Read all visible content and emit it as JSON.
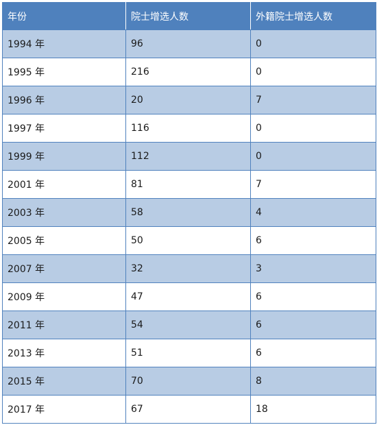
{
  "table": {
    "headers": [
      "年份",
      "院士增选人数",
      "外籍院士增选人数"
    ],
    "rows": [
      [
        "1994 年",
        "96",
        "0"
      ],
      [
        "1995 年",
        "216",
        "0"
      ],
      [
        "1996 年",
        "20",
        "7"
      ],
      [
        "1997 年",
        "116",
        "0"
      ],
      [
        "1999 年",
        "112",
        "0"
      ],
      [
        "2001 年",
        "81",
        "7"
      ],
      [
        "2003 年",
        "58",
        "4"
      ],
      [
        "2005 年",
        "50",
        "6"
      ],
      [
        "2007 年",
        "32",
        "3"
      ],
      [
        "2009 年",
        "47",
        "6"
      ],
      [
        "2011 年",
        "54",
        "6"
      ],
      [
        "2013 年",
        "51",
        "6"
      ],
      [
        "2015 年",
        "70",
        "8"
      ],
      [
        "2017 年",
        "67",
        "18"
      ]
    ]
  },
  "colors": {
    "header_bg": "#4f81bd",
    "band_bg": "#b8cce4",
    "border": "#4f81bd"
  }
}
